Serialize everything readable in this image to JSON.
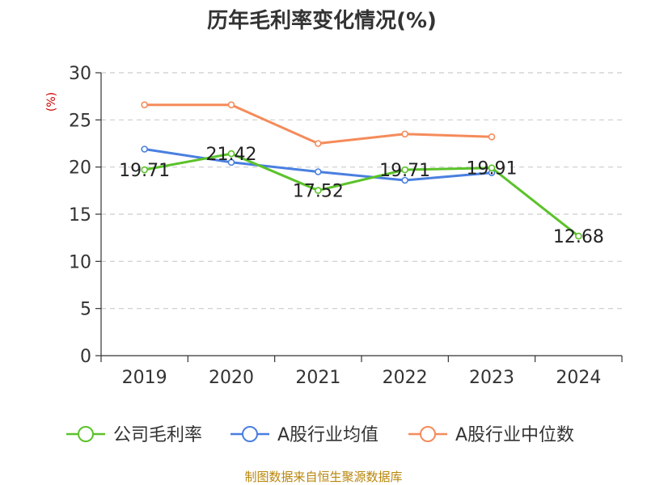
{
  "chart_data": {
    "type": "line",
    "title": "历年毛利率变化情况(%)",
    "ylabel": "(%)",
    "xlabel": "",
    "categories": [
      "2019",
      "2020",
      "2021",
      "2022",
      "2023",
      "2024"
    ],
    "ylim": [
      0,
      30
    ],
    "yticks": [
      0,
      5,
      10,
      15,
      20,
      25,
      30
    ],
    "grid": true,
    "legend_position": "bottom",
    "series": [
      {
        "name": "公司毛利率",
        "color": "#5bc22a",
        "values": [
          19.71,
          21.42,
          17.52,
          19.71,
          19.91,
          12.68
        ],
        "labels": [
          "19.71",
          "21.42",
          "17.52",
          "19.71",
          "19.91",
          "12.68"
        ]
      },
      {
        "name": "A股行业均值",
        "color": "#4a7fe0",
        "values": [
          21.9,
          20.5,
          19.5,
          18.6,
          19.4,
          null
        ]
      },
      {
        "name": "A股行业中位数",
        "color": "#f58b5a",
        "values": [
          26.6,
          26.6,
          22.5,
          23.5,
          23.2,
          null
        ]
      }
    ],
    "source": "制图数据来自恒生聚源数据库"
  }
}
